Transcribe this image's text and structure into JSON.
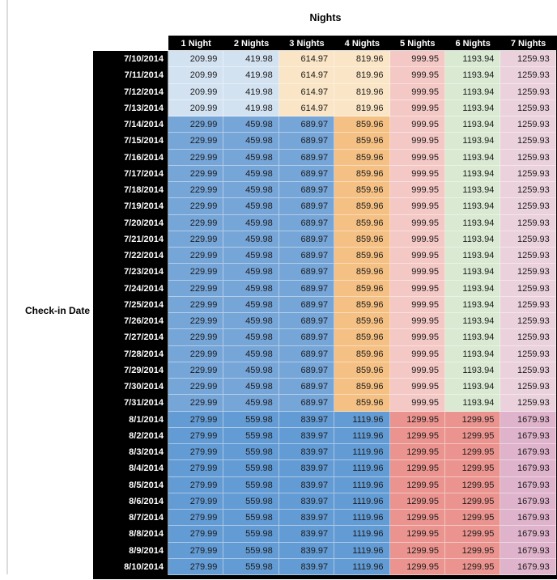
{
  "page": {
    "background": "#FFFFFF",
    "left_rule_color": "#DCDCDC"
  },
  "table_style": {
    "header_bg": "#000000",
    "header_text_color": "#FFFFFF",
    "cell_text_color": "#1C1C1C"
  },
  "palette": {
    "light_blue": "#D3E2F1",
    "tan": "#FAE5C6",
    "orange": "#F5C083",
    "pink": "#F3C8C5",
    "green": "#D9E9D2",
    "mauve": "#EAD1DB",
    "mid_blue": "#76A5D8",
    "aug_blue": "#639BD4",
    "salmon": "#EB948F",
    "aug_mauve": "#DFB3CB"
  },
  "tier_colors": {
    "A": [
      "light_blue",
      "light_blue",
      "tan",
      "tan",
      "pink",
      "green",
      "mauve"
    ],
    "B": [
      "mid_blue",
      "mid_blue",
      "mid_blue",
      "orange",
      "pink",
      "green",
      "mauve"
    ],
    "C": [
      "aug_blue",
      "aug_blue",
      "aug_blue",
      "aug_blue",
      "salmon",
      "salmon",
      "aug_mauve"
    ]
  },
  "chart_data": {
    "type": "table",
    "title": "Nights",
    "row_axis_label": "Check-in Date",
    "columns": [
      "1 Night",
      "2 Nights",
      "3 Nights",
      "4 Nights",
      "5 Nights",
      "6 Nights",
      "7 Nights"
    ],
    "rows": [
      {
        "date": "7/10/2014",
        "tier": "A",
        "values": [
          209.99,
          419.98,
          614.97,
          819.96,
          999.95,
          1193.94,
          1259.93
        ]
      },
      {
        "date": "7/11/2014",
        "tier": "A",
        "values": [
          209.99,
          419.98,
          614.97,
          819.96,
          999.95,
          1193.94,
          1259.93
        ]
      },
      {
        "date": "7/12/2014",
        "tier": "A",
        "values": [
          209.99,
          419.98,
          614.97,
          819.96,
          999.95,
          1193.94,
          1259.93
        ]
      },
      {
        "date": "7/13/2014",
        "tier": "A",
        "values": [
          209.99,
          419.98,
          614.97,
          819.96,
          999.95,
          1193.94,
          1259.93
        ]
      },
      {
        "date": "7/14/2014",
        "tier": "B",
        "values": [
          229.99,
          459.98,
          689.97,
          859.96,
          999.95,
          1193.94,
          1259.93
        ]
      },
      {
        "date": "7/15/2014",
        "tier": "B",
        "values": [
          229.99,
          459.98,
          689.97,
          859.96,
          999.95,
          1193.94,
          1259.93
        ]
      },
      {
        "date": "7/16/2014",
        "tier": "B",
        "values": [
          229.99,
          459.98,
          689.97,
          859.96,
          999.95,
          1193.94,
          1259.93
        ]
      },
      {
        "date": "7/17/2014",
        "tier": "B",
        "values": [
          229.99,
          459.98,
          689.97,
          859.96,
          999.95,
          1193.94,
          1259.93
        ]
      },
      {
        "date": "7/18/2014",
        "tier": "B",
        "values": [
          229.99,
          459.98,
          689.97,
          859.96,
          999.95,
          1193.94,
          1259.93
        ]
      },
      {
        "date": "7/19/2014",
        "tier": "B",
        "values": [
          229.99,
          459.98,
          689.97,
          859.96,
          999.95,
          1193.94,
          1259.93
        ]
      },
      {
        "date": "7/20/2014",
        "tier": "B",
        "values": [
          229.99,
          459.98,
          689.97,
          859.96,
          999.95,
          1193.94,
          1259.93
        ]
      },
      {
        "date": "7/21/2014",
        "tier": "B",
        "values": [
          229.99,
          459.98,
          689.97,
          859.96,
          999.95,
          1193.94,
          1259.93
        ]
      },
      {
        "date": "7/22/2014",
        "tier": "B",
        "values": [
          229.99,
          459.98,
          689.97,
          859.96,
          999.95,
          1193.94,
          1259.93
        ]
      },
      {
        "date": "7/23/2014",
        "tier": "B",
        "values": [
          229.99,
          459.98,
          689.97,
          859.96,
          999.95,
          1193.94,
          1259.93
        ]
      },
      {
        "date": "7/24/2014",
        "tier": "B",
        "values": [
          229.99,
          459.98,
          689.97,
          859.96,
          999.95,
          1193.94,
          1259.93
        ]
      },
      {
        "date": "7/25/2014",
        "tier": "B",
        "values": [
          229.99,
          459.98,
          689.97,
          859.96,
          999.95,
          1193.94,
          1259.93
        ]
      },
      {
        "date": "7/26/2014",
        "tier": "B",
        "values": [
          229.99,
          459.98,
          689.97,
          859.96,
          999.95,
          1193.94,
          1259.93
        ]
      },
      {
        "date": "7/27/2014",
        "tier": "B",
        "values": [
          229.99,
          459.98,
          689.97,
          859.96,
          999.95,
          1193.94,
          1259.93
        ]
      },
      {
        "date": "7/28/2014",
        "tier": "B",
        "values": [
          229.99,
          459.98,
          689.97,
          859.96,
          999.95,
          1193.94,
          1259.93
        ]
      },
      {
        "date": "7/29/2014",
        "tier": "B",
        "values": [
          229.99,
          459.98,
          689.97,
          859.96,
          999.95,
          1193.94,
          1259.93
        ]
      },
      {
        "date": "7/30/2014",
        "tier": "B",
        "values": [
          229.99,
          459.98,
          689.97,
          859.96,
          999.95,
          1193.94,
          1259.93
        ]
      },
      {
        "date": "7/31/2014",
        "tier": "B",
        "values": [
          229.99,
          459.98,
          689.97,
          859.96,
          999.95,
          1193.94,
          1259.93
        ]
      },
      {
        "date": "8/1/2014",
        "tier": "C",
        "values": [
          279.99,
          559.98,
          839.97,
          1119.96,
          1299.95,
          1299.95,
          1679.93
        ]
      },
      {
        "date": "8/2/2014",
        "tier": "C",
        "values": [
          279.99,
          559.98,
          839.97,
          1119.96,
          1299.95,
          1299.95,
          1679.93
        ]
      },
      {
        "date": "8/3/2014",
        "tier": "C",
        "values": [
          279.99,
          559.98,
          839.97,
          1119.96,
          1299.95,
          1299.95,
          1679.93
        ]
      },
      {
        "date": "8/4/2014",
        "tier": "C",
        "values": [
          279.99,
          559.98,
          839.97,
          1119.96,
          1299.95,
          1299.95,
          1679.93
        ]
      },
      {
        "date": "8/5/2014",
        "tier": "C",
        "values": [
          279.99,
          559.98,
          839.97,
          1119.96,
          1299.95,
          1299.95,
          1679.93
        ]
      },
      {
        "date": "8/6/2014",
        "tier": "C",
        "values": [
          279.99,
          559.98,
          839.97,
          1119.96,
          1299.95,
          1299.95,
          1679.93
        ]
      },
      {
        "date": "8/7/2014",
        "tier": "C",
        "values": [
          279.99,
          559.98,
          839.97,
          1119.96,
          1299.95,
          1299.95,
          1679.93
        ]
      },
      {
        "date": "8/8/2014",
        "tier": "C",
        "values": [
          279.99,
          559.98,
          839.97,
          1119.96,
          1299.95,
          1299.95,
          1679.93
        ]
      },
      {
        "date": "8/9/2014",
        "tier": "C",
        "values": [
          279.99,
          559.98,
          839.97,
          1119.96,
          1299.95,
          1299.95,
          1679.93
        ]
      },
      {
        "date": "8/10/2014",
        "tier": "C",
        "values": [
          279.99,
          559.98,
          839.97,
          1119.96,
          1299.95,
          1299.95,
          1679.93
        ]
      }
    ]
  }
}
